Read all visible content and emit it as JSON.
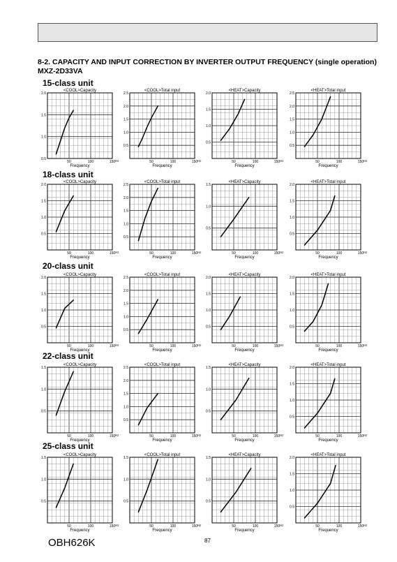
{
  "header": {
    "band": ""
  },
  "section_title": "8-2. CAPACITY AND INPUT CORRECTION BY INVERTER OUTPUT FREQUENCY (single operation)",
  "model": "MXZ-2D33VA",
  "page_number": "87",
  "footer_code": "OBH626K",
  "xlabel": "Frequency",
  "xunit": "Hz",
  "chart_data": [
    {
      "unit": "15-class unit",
      "title": "<COOL>Capacity",
      "type": "line",
      "xlim": [
        0,
        150
      ],
      "ylim": [
        0.5,
        2.0
      ],
      "xticks": [
        "50",
        "100",
        "150"
      ],
      "yticks": [
        "0.5",
        "1.0",
        "1.5",
        "2.0"
      ],
      "x": [
        20,
        30,
        40,
        50,
        60
      ],
      "y": [
        0.6,
        0.9,
        1.2,
        1.43,
        1.6
      ]
    },
    {
      "unit": "15-class unit",
      "title": "<COOL>Total input",
      "type": "line",
      "xlim": [
        0,
        150
      ],
      "ylim": [
        0,
        2.5
      ],
      "xticks": [
        "50",
        "100",
        "150"
      ],
      "yticks": [
        "0.5",
        "1.0",
        "1.5",
        "2.0",
        "2.5"
      ],
      "x": [
        20,
        30,
        40,
        50,
        65
      ],
      "y": [
        0.45,
        0.8,
        1.2,
        1.55,
        2.0
      ]
    },
    {
      "unit": "15-class unit",
      "title": "<HEAT>Capacity",
      "type": "line",
      "xlim": [
        0,
        150
      ],
      "ylim": [
        0,
        2.0
      ],
      "xticks": [
        "50",
        "100",
        "150"
      ],
      "yticks": [
        "0.5",
        "1.0",
        "1.5",
        "2.0"
      ],
      "x": [
        20,
        40,
        60,
        75
      ],
      "y": [
        0.55,
        0.9,
        1.35,
        1.8
      ]
    },
    {
      "unit": "15-class unit",
      "title": "<HEAT>Total input",
      "type": "line",
      "xlim": [
        0,
        150
      ],
      "ylim": [
        0,
        2.5
      ],
      "xticks": [
        "50",
        "100",
        "150"
      ],
      "yticks": [
        "0.5",
        "1.0",
        "1.5",
        "2.0",
        "2.5"
      ],
      "x": [
        20,
        40,
        60,
        80
      ],
      "y": [
        0.45,
        0.9,
        1.5,
        2.35
      ]
    },
    {
      "unit": "18-class unit",
      "title": "<COOL>Capacity",
      "type": "line",
      "xlim": [
        0,
        150
      ],
      "ylim": [
        0,
        2.0
      ],
      "xticks": [
        "50",
        "100",
        "150"
      ],
      "yticks": [
        "0.5",
        "1.0",
        "1.5",
        "2.0"
      ],
      "x": [
        20,
        40,
        60
      ],
      "y": [
        0.55,
        1.2,
        1.65
      ]
    },
    {
      "unit": "18-class unit",
      "title": "<COOL>Total input",
      "type": "line",
      "xlim": [
        0,
        150
      ],
      "ylim": [
        0,
        2.5
      ],
      "xticks": [
        "50",
        "100",
        "150"
      ],
      "yticks": [
        "0.5",
        "1.0",
        "1.5",
        "2.0",
        "2.5"
      ],
      "x": [
        20,
        35,
        50,
        65
      ],
      "y": [
        0.35,
        1.2,
        1.85,
        2.35
      ]
    },
    {
      "unit": "18-class unit",
      "title": "<HEAT>Capacity",
      "type": "line",
      "xlim": [
        0,
        150
      ],
      "ylim": [
        0,
        1.5
      ],
      "xticks": [
        "50",
        "100",
        "150"
      ],
      "yticks": [
        "0.5",
        "1.0",
        "1.5"
      ],
      "x": [
        20,
        50,
        85
      ],
      "y": [
        0.3,
        0.7,
        1.2
      ]
    },
    {
      "unit": "18-class unit",
      "title": "<HEAT>Total input",
      "type": "line",
      "xlim": [
        0,
        150
      ],
      "ylim": [
        0,
        2.0
      ],
      "xticks": [
        "50",
        "100",
        "150"
      ],
      "yticks": [
        "0.5",
        "1.0",
        "1.5",
        "2.0"
      ],
      "x": [
        20,
        50,
        80,
        90
      ],
      "y": [
        0.15,
        0.6,
        1.2,
        1.65
      ]
    },
    {
      "unit": "20-class unit",
      "title": "<COOL>Capacity",
      "type": "line",
      "xlim": [
        0,
        150
      ],
      "ylim": [
        0,
        2.0
      ],
      "xticks": [
        "50",
        "100",
        "150"
      ],
      "yticks": [
        "0.5",
        "1.0",
        "1.5",
        "2.0"
      ],
      "x": [
        20,
        40,
        60
      ],
      "y": [
        0.45,
        1.05,
        1.3
      ]
    },
    {
      "unit": "20-class unit",
      "title": "<COOL>Total input",
      "type": "line",
      "xlim": [
        0,
        150
      ],
      "ylim": [
        0,
        2.5
      ],
      "xticks": [
        "50",
        "100",
        "150"
      ],
      "yticks": [
        "0.5",
        "1.0",
        "1.5",
        "2.0",
        "2.5"
      ],
      "x": [
        20,
        40,
        65
      ],
      "y": [
        0.35,
        0.9,
        1.65
      ]
    },
    {
      "unit": "20-class unit",
      "title": "<HEAT>Capacity",
      "type": "line",
      "xlim": [
        0,
        150
      ],
      "ylim": [
        0,
        2.0
      ],
      "xticks": [
        "50",
        "100",
        "150"
      ],
      "yticks": [
        "0.5",
        "1.0",
        "1.5",
        "2.0"
      ],
      "x": [
        20,
        40,
        65
      ],
      "y": [
        0.4,
        0.8,
        1.4
      ]
    },
    {
      "unit": "20-class unit",
      "title": "<HEAT>Total input",
      "type": "line",
      "xlim": [
        0,
        150
      ],
      "ylim": [
        0,
        2.0
      ],
      "xticks": [
        "50",
        "100",
        "150"
      ],
      "yticks": [
        "0.5",
        "1.0",
        "1.5",
        "2.0"
      ],
      "x": [
        20,
        40,
        60,
        75
      ],
      "y": [
        0.35,
        0.65,
        1.15,
        1.8
      ]
    },
    {
      "unit": "22-class unit",
      "title": "<COOL>Capacity",
      "type": "line",
      "xlim": [
        0,
        150
      ],
      "ylim": [
        0,
        1.5
      ],
      "xticks": [
        "50",
        "100",
        "150"
      ],
      "yticks": [
        "0.5",
        "1.0",
        "1.5"
      ],
      "x": [
        20,
        40,
        60
      ],
      "y": [
        0.4,
        0.95,
        1.4
      ]
    },
    {
      "unit": "22-class unit",
      "title": "<COOL>Total input",
      "type": "line",
      "xlim": [
        0,
        150
      ],
      "ylim": [
        0,
        2.5
      ],
      "xticks": [
        "50",
        "100",
        "150"
      ],
      "yticks": [
        "0.5",
        "1.0",
        "1.5",
        "2.0",
        "2.5"
      ],
      "x": [
        20,
        40,
        65
      ],
      "y": [
        0.3,
        0.95,
        1.5
      ]
    },
    {
      "unit": "22-class unit",
      "title": "<HEAT>Capacity",
      "type": "line",
      "xlim": [
        0,
        150
      ],
      "ylim": [
        0,
        1.5
      ],
      "xticks": [
        "50",
        "100",
        "150"
      ],
      "yticks": [
        "0.5",
        "1.0",
        "1.5"
      ],
      "x": [
        20,
        55,
        85
      ],
      "y": [
        0.3,
        0.75,
        1.25
      ]
    },
    {
      "unit": "22-class unit",
      "title": "<HEAT>Total input",
      "type": "line",
      "xlim": [
        0,
        150
      ],
      "ylim": [
        0,
        2.0
      ],
      "xticks": [
        "50",
        "100",
        "150"
      ],
      "yticks": [
        "0.5",
        "1.0",
        "1.5",
        "2.0"
      ],
      "x": [
        20,
        50,
        80,
        90
      ],
      "y": [
        0.15,
        0.6,
        1.2,
        1.65
      ]
    },
    {
      "unit": "25-class unit",
      "title": "<COOL>Capacity",
      "type": "line",
      "xlim": [
        0,
        150
      ],
      "ylim": [
        0,
        1.5
      ],
      "xticks": [
        "50",
        "100",
        "150"
      ],
      "yticks": [
        "0.5",
        "1.0",
        "1.5"
      ],
      "x": [
        20,
        40,
        60
      ],
      "y": [
        0.35,
        0.8,
        1.35
      ]
    },
    {
      "unit": "25-class unit",
      "title": "<COOL>Total input",
      "type": "line",
      "xlim": [
        0,
        150
      ],
      "ylim": [
        0,
        1.5
      ],
      "xticks": [
        "50",
        "100",
        "150"
      ],
      "yticks": [
        "0.5",
        "1.0",
        "1.5"
      ],
      "x": [
        20,
        40,
        65
      ],
      "y": [
        0.25,
        0.75,
        1.45
      ]
    },
    {
      "unit": "25-class unit",
      "title": "<HEAT>Capacity",
      "type": "line",
      "xlim": [
        0,
        150
      ],
      "ylim": [
        0,
        1.5
      ],
      "xticks": [
        "50",
        "100",
        "150"
      ],
      "yticks": [
        "0.5",
        "1.0",
        "1.5"
      ],
      "x": [
        20,
        55,
        90
      ],
      "y": [
        0.25,
        0.7,
        1.25
      ]
    },
    {
      "unit": "25-class unit",
      "title": "<HEAT>Total input",
      "type": "line",
      "xlim": [
        0,
        150
      ],
      "ylim": [
        0,
        2.0
      ],
      "xticks": [
        "50",
        "100",
        "150"
      ],
      "yticks": [
        "0.5",
        "1.0",
        "1.5",
        "2.0"
      ],
      "x": [
        20,
        50,
        80,
        92
      ],
      "y": [
        0.15,
        0.6,
        1.2,
        1.75
      ]
    }
  ]
}
